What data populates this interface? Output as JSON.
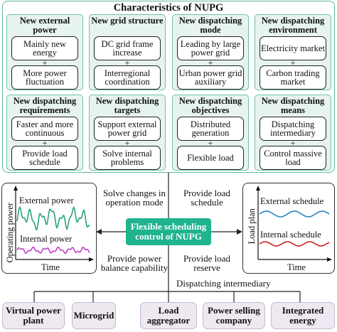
{
  "title": "Characteristics of NUPG",
  "cards": [
    {
      "title": "New external power",
      "items": [
        "Mainly new energy",
        "More power fluctuation"
      ]
    },
    {
      "title": "New grid structure",
      "items": [
        "DC grid frame increase",
        "Interregional coordination"
      ]
    },
    {
      "title": "New dispatching mode",
      "items": [
        "Leading by large power grid",
        "Urban power grid auxiliary"
      ]
    },
    {
      "title": "New dispatching environment",
      "items": [
        "Electricity market",
        "Carbon trading market"
      ]
    },
    {
      "title": "New dispatching requirements",
      "items": [
        "Faster and more continuous",
        "Provide load schedule"
      ]
    },
    {
      "title": "New dispatching targets",
      "items": [
        "Support external power grid",
        "Solve internal problems"
      ]
    },
    {
      "title": "New dispatching objectives",
      "items": [
        "Distributed generation",
        "Flexible load"
      ]
    },
    {
      "title": "New dispatching means",
      "items": [
        "Dispatching intermediary",
        "Control massive load"
      ]
    }
  ],
  "center": "Flexible scheduling control of NUPG",
  "labels": {
    "top_left": "Solve changes in operation mode",
    "top_right": "Provide load schedule",
    "bottom_left": "Provide power balance capability",
    "bottom_right": "Provide load reserve",
    "intermediary": "Dispatching intermediary"
  },
  "left_chart": {
    "ylabel": "Operating power",
    "xlabel": "Time",
    "series": [
      {
        "name": "External power",
        "color": "#2aa37d"
      },
      {
        "name": "Internal power",
        "color": "#c23fc7"
      }
    ]
  },
  "right_chart": {
    "ylabel": "Load plan",
    "xlabel": "Time",
    "series": [
      {
        "name": "External schedule",
        "color": "#1f86c4"
      },
      {
        "name": "Internal schedule",
        "color": "#cc1f1f"
      }
    ]
  },
  "bottom": [
    "Virtual power plant",
    "Microgrid",
    "Load aggregator",
    "Power selling company",
    "Integrated energy"
  ],
  "plus_symbol": "+"
}
